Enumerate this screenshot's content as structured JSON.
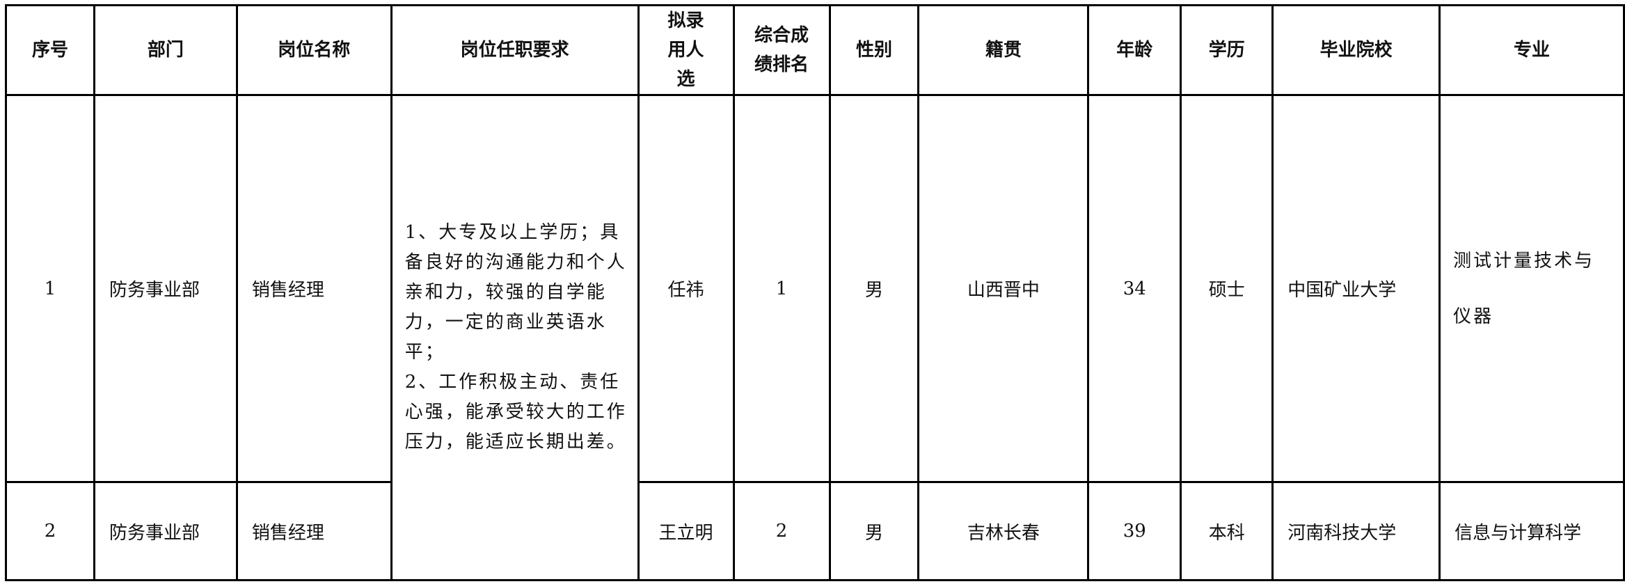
{
  "table": {
    "headers": [
      "序号",
      "部门",
      "岗位名称",
      "岗位任职要求",
      "拟录用人选",
      "综合成绩排名",
      "性别",
      "籍贯",
      "年龄",
      "学历",
      "毕业院校",
      "专业"
    ],
    "requirement": "1、大专及以上学历；具备良好的沟通能力和个人亲和力，较强的自学能力，一定的商业英语水平；\n2、工作积极主动、责任心强，能承受较大的工作压力，能适应长期出差。",
    "rows": [
      {
        "no": "1",
        "dept": "防务事业部",
        "position": "销售经理",
        "candidate": "任祎",
        "rank": "1",
        "gender": "男",
        "origin": "山西晋中",
        "age": "34",
        "degree": "硕士",
        "school": "中国矿业大学",
        "major": "测试计量技术与仪器"
      },
      {
        "no": "2",
        "dept": "防务事业部",
        "position": "销售经理",
        "candidate": "王立明",
        "rank": "2",
        "gender": "男",
        "origin": "吉林长春",
        "age": "39",
        "degree": "本科",
        "school": "河南科技大学",
        "major": "信息与计算科学"
      }
    ]
  }
}
